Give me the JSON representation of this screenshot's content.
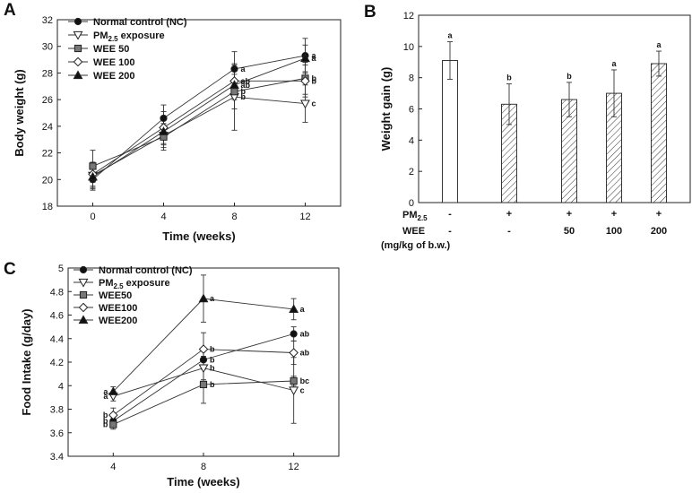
{
  "chart_data": [
    {
      "panel": "A",
      "type": "line",
      "xlabel": "Time (weeks)",
      "ylabel": "Body weight (g)",
      "x": [
        0,
        4,
        8,
        12
      ],
      "xlim": [
        -2,
        14
      ],
      "ylim": [
        18,
        32
      ],
      "yticks": [
        18,
        20,
        22,
        24,
        26,
        28,
        30,
        32
      ],
      "grid": false,
      "legend": "top-left",
      "series": [
        {
          "name": "Normal control (NC)",
          "marker": "circle",
          "values": [
            20.0,
            24.6,
            28.3,
            29.3
          ],
          "errors": [
            0.8,
            1.0,
            1.3,
            1.3
          ],
          "letters": [
            "",
            "",
            "a",
            "a"
          ]
        },
        {
          "name": "PM2.5 exposure",
          "marker": "triangle-down",
          "values": [
            20.3,
            23.3,
            26.2,
            25.7
          ],
          "errors": [
            1.0,
            0.9,
            2.5,
            1.4
          ],
          "letters": [
            "",
            "",
            "b",
            "c"
          ]
        },
        {
          "name": "WEE 50",
          "marker": "square",
          "values": [
            21.0,
            23.2,
            26.6,
            27.6
          ],
          "errors": [
            1.2,
            1.0,
            1.3,
            1.2
          ],
          "letters": [
            "",
            "",
            "b",
            "b"
          ]
        },
        {
          "name": "WEE 100",
          "marker": "diamond",
          "values": [
            20.4,
            23.9,
            27.4,
            27.4
          ],
          "errors": [
            0.9,
            1.2,
            1.2,
            1.2
          ],
          "letters": [
            "",
            "",
            "ab",
            "b"
          ]
        },
        {
          "name": "WEE 200",
          "marker": "triangle-up",
          "values": [
            20.2,
            23.6,
            27.1,
            29.1
          ],
          "errors": [
            0.8,
            1.0,
            1.1,
            1.0
          ],
          "letters": [
            "",
            "",
            "ab",
            "a"
          ]
        }
      ]
    },
    {
      "panel": "B",
      "type": "bar",
      "ylabel": "Weight gain (g)",
      "ylim": [
        0,
        12
      ],
      "yticks": [
        0,
        2,
        4,
        6,
        8,
        10,
        12
      ],
      "row_labels": [
        "PM2.5",
        "WEE",
        "(mg/kg of b.w.)"
      ],
      "pm25_row": [
        "-",
        "+",
        "+",
        "+",
        "+"
      ],
      "wee_row": [
        "-",
        "-",
        "50",
        "100",
        "200"
      ],
      "values": [
        9.1,
        6.3,
        6.6,
        7.0,
        8.9
      ],
      "errors": [
        1.2,
        1.3,
        1.1,
        1.5,
        0.8
      ],
      "hatched": [
        false,
        true,
        true,
        true,
        true
      ],
      "letters": [
        "a",
        "b",
        "b",
        "a",
        "a"
      ]
    },
    {
      "panel": "C",
      "type": "line",
      "xlabel": "Time (weeks)",
      "ylabel": "Food Intake (g/day)",
      "x": [
        4,
        8,
        12
      ],
      "xlim": [
        2,
        14
      ],
      "ylim": [
        3.4,
        5.0
      ],
      "yticks": [
        3.4,
        3.6,
        3.8,
        4.0,
        4.2,
        4.4,
        4.6,
        4.8,
        5.0
      ],
      "grid": false,
      "legend": "top-left",
      "series": [
        {
          "name": "Normal control (NC)",
          "marker": "circle",
          "values": [
            3.7,
            4.22,
            4.44
          ],
          "errors": [
            0.05,
            0.08,
            0.06
          ],
          "letters": [
            "b",
            "b",
            "ab"
          ]
        },
        {
          "name": "PM2.5 exposure",
          "marker": "triangle-down",
          "values": [
            3.91,
            4.15,
            3.96
          ],
          "errors": [
            0.04,
            0.1,
            0.28
          ],
          "letters": [
            "a",
            "b",
            "c"
          ]
        },
        {
          "name": "WEE50",
          "marker": "square",
          "values": [
            3.67,
            4.01,
            4.04
          ],
          "errors": [
            0.04,
            0.16,
            0.04
          ],
          "letters": [
            "b",
            "b",
            "bc"
          ]
        },
        {
          "name": "WEE100",
          "marker": "diamond",
          "values": [
            3.75,
            4.31,
            4.28
          ],
          "errors": [
            0.06,
            0.14,
            0.1
          ],
          "letters": [
            "b",
            "b",
            "ab"
          ]
        },
        {
          "name": "WEE200",
          "marker": "triangle-up",
          "values": [
            3.95,
            4.74,
            4.65
          ],
          "errors": [
            0.04,
            0.2,
            0.09
          ],
          "letters": [
            "a",
            "a",
            "a"
          ]
        }
      ]
    }
  ]
}
